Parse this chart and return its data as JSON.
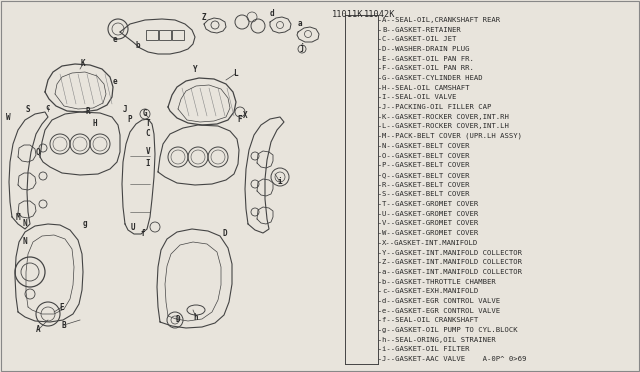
{
  "bg_color": "#e8e4dc",
  "diagram_bg": "#f5f2ed",
  "text_color": "#2a2a2a",
  "line_color": "#444444",
  "part_num_left": "11011K",
  "part_num_right": "11042K",
  "parts_list": [
    "A--SEAL-OIL,CRANKSHAFT REAR",
    "B--GASKET-RETAINER",
    "C--GASKET-OIL JET",
    "D--WASHER-DRAIN PLUG",
    "E--GASKET-OIL PAN FR.",
    "F--GASKET-OIL PAN RR.",
    "G--GASKET-CYLINDER HEAD",
    "H--SEAL-OIL CAMSHAFT",
    "I--SEAL-OIL VALVE",
    "J--PACKING-OIL FILLER CAP",
    "K--GASKET-ROCKER COVER,INT.RH",
    "L--GASKET-ROCKER COVER,INT.LH",
    "M--PACK-BELT COVER (UPR.LH ASSY)",
    "N--GASKET-BELT COVER",
    "O--GASKET-BELT COVER",
    "P--GASKET-BELT COVER",
    "Q--GASKET-BELT COVER",
    "R--GASKET-BELT COVER",
    "S--GASKET-BELT COVER",
    "T--GASKET-GROMET COVER",
    "U--GASKET-GROMET COVER",
    "V--GASKET-GROMET COVER",
    "W--GASKET-GROMET COVER",
    "X--GASKET-INT.MANIFOLD",
    "Y--GASKET-INT.MANIFOLD COLLECTOR",
    "Z--GASKET-INT.MANIFOLD COLLECTOR",
    "a--GASKET-INT.MANIFOLD COLLECTOR",
    "b--GASKET-THROTTLE CHAMBER",
    "c--GASKET-EXH.MANIFOLD",
    "d--GASKET-EGR CONTROL VALVE",
    "e--GASKET-EGR CONTROL VALVE",
    "f--SEAL-OIL CRANKSHAFT",
    "g--GASKET-OIL PUMP TO CYL.BLOCK",
    "h--SEAL-ORING,OIL STRAINER",
    "i--GASKET-OIL FILTER",
    "J--GASKET-AAC VALVE    A-0P^ 0>69"
  ],
  "font_size_parts": 5.2,
  "font_size_labels": 5.5,
  "font_size_partnum": 6.2
}
